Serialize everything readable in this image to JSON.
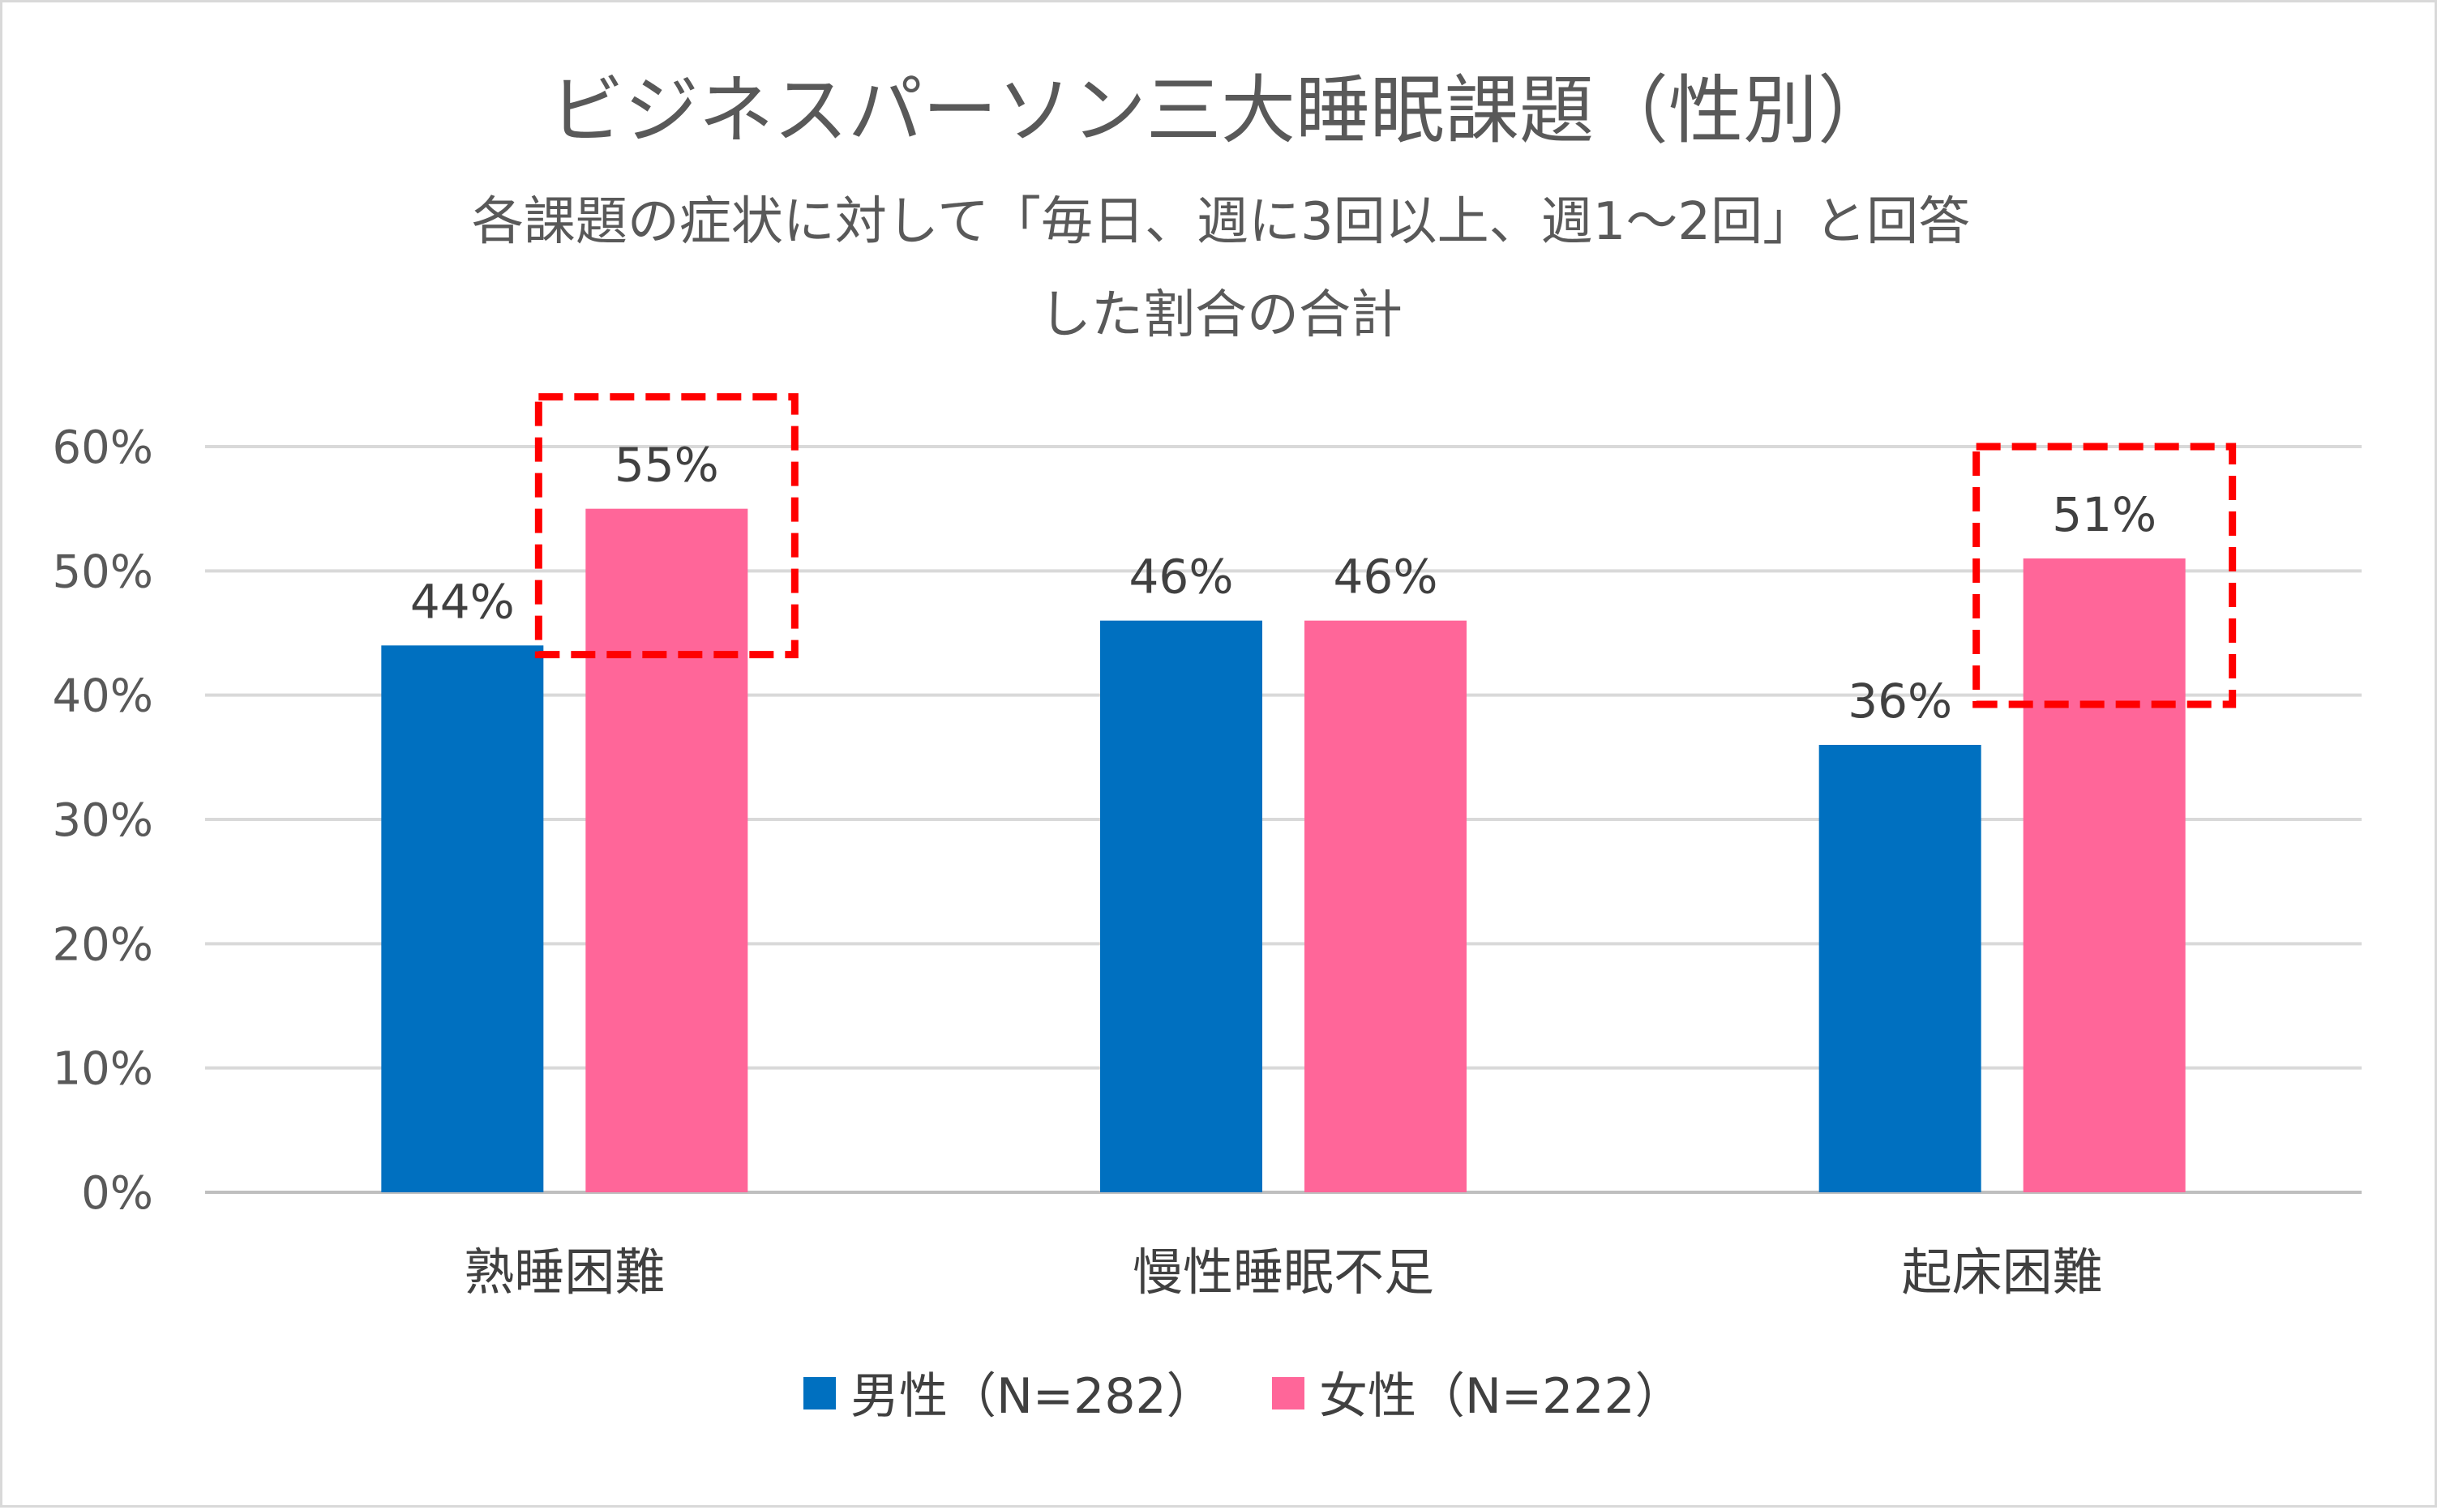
{
  "chart_data": {
    "type": "bar",
    "title": "ビジネスパーソン三大睡眠課題（性別）",
    "subtitle_lines": [
      "各課題の症状に対して「毎日、週に3回以上、週1～2回」と回答",
      "した割合の合計"
    ],
    "categories": [
      "熟睡困難",
      "慢性睡眠不足",
      "起床困難"
    ],
    "series": [
      {
        "name": "男性（N=282）",
        "color": "#0070c0",
        "values": [
          44,
          46,
          36
        ],
        "labels": [
          "44%",
          "46%",
          "36%"
        ]
      },
      {
        "name": "女性（N=222）",
        "color": "#ff6699",
        "values": [
          55,
          46,
          51
        ],
        "labels": [
          "55%",
          "46%",
          "51%"
        ]
      }
    ],
    "ylim": [
      0,
      60
    ],
    "ytick_values": [
      0,
      10,
      20,
      30,
      40,
      50,
      60
    ],
    "ytick_labels": [
      "0%",
      "10%",
      "20%",
      "30%",
      "40%",
      "50%",
      "60%"
    ],
    "xlabel": "",
    "ylabel": "",
    "grid": true,
    "legend_position": "bottom",
    "highlights": [
      {
        "category_index": 0,
        "series_index": 1,
        "color": "#ff0000",
        "style": "dashed"
      },
      {
        "category_index": 2,
        "series_index": 1,
        "color": "#ff0000",
        "style": "dashed"
      }
    ]
  }
}
